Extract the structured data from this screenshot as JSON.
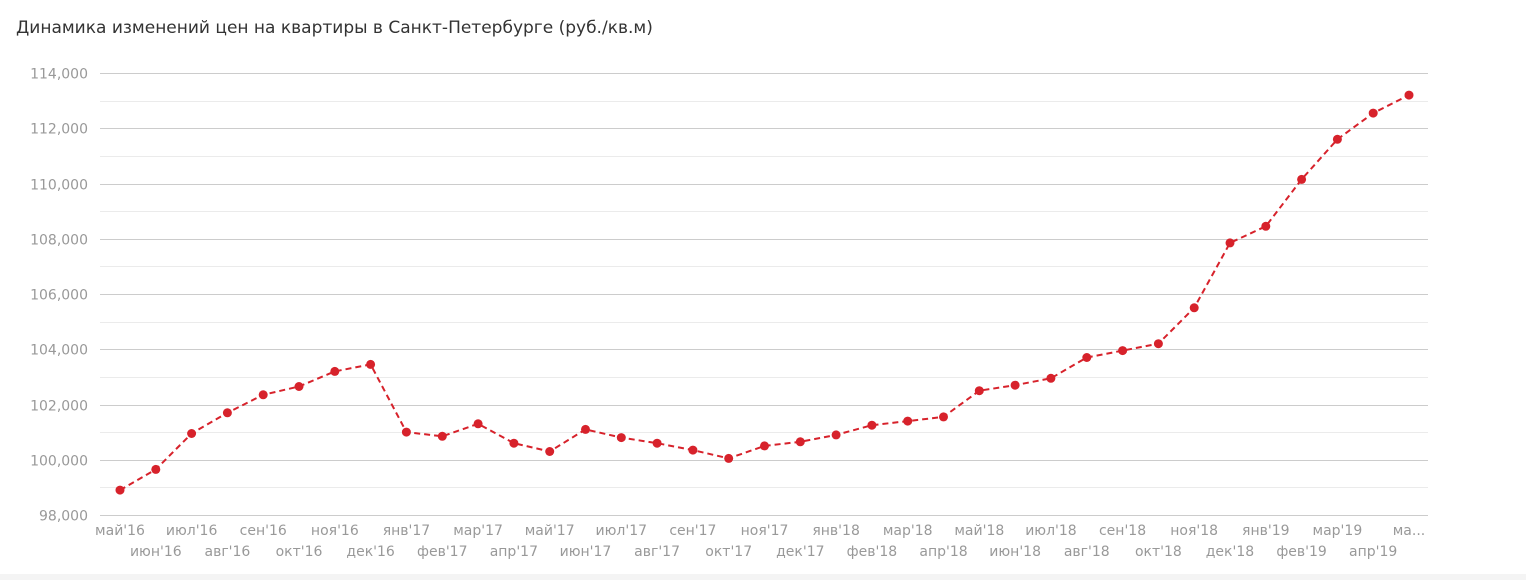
{
  "title": "Динамика изменений цен на квартиры в Санкт-Петербурге (руб./кв.м)",
  "colors": {
    "series": "#d7222b",
    "grid_major": "#cccccc",
    "grid_minor": "#ebebeb",
    "tick_text": "#999999",
    "title_text": "#333333"
  },
  "chart_data": {
    "type": "line",
    "title": "Динамика изменений цен на квартиры в Санкт-Петербурге (руб./кв.м)",
    "xlabel": "",
    "ylabel": "",
    "ylim": [
      98000,
      114000
    ],
    "yticks": [
      "98,000",
      "100,000",
      "102,000",
      "104,000",
      "106,000",
      "108,000",
      "110,000",
      "112,000",
      "114,000"
    ],
    "grid": true,
    "line_style": "dashed",
    "markers": true,
    "categories": [
      "май'16",
      "июн'16",
      "июл'16",
      "авг'16",
      "сен'16",
      "окт'16",
      "ноя'16",
      "дек'16",
      "янв'17",
      "фев'17",
      "мар'17",
      "апр'17",
      "май'17",
      "июн'17",
      "июл'17",
      "авг'17",
      "сен'17",
      "окт'17",
      "ноя'17",
      "дек'17",
      "янв'18",
      "фев'18",
      "мар'18",
      "апр'18",
      "май'18",
      "июн'18",
      "июл'18",
      "авг'18",
      "сен'18",
      "окт'18",
      "ноя'18",
      "дек'18",
      "янв'19",
      "фев'19",
      "мар'19",
      "апр'19",
      "ма..."
    ],
    "series": [
      {
        "values": [
          98900,
          99650,
          100950,
          101700,
          102350,
          102650,
          103200,
          103450,
          101000,
          100850,
          101300,
          100600,
          100300,
          101100,
          100800,
          100600,
          100350,
          100050,
          100500,
          100650,
          100900,
          101250,
          101400,
          101550,
          102500,
          102700,
          102950,
          103700,
          103950,
          104200,
          105500,
          107850,
          108450,
          110150,
          111600,
          112550,
          113200
        ]
      }
    ]
  }
}
